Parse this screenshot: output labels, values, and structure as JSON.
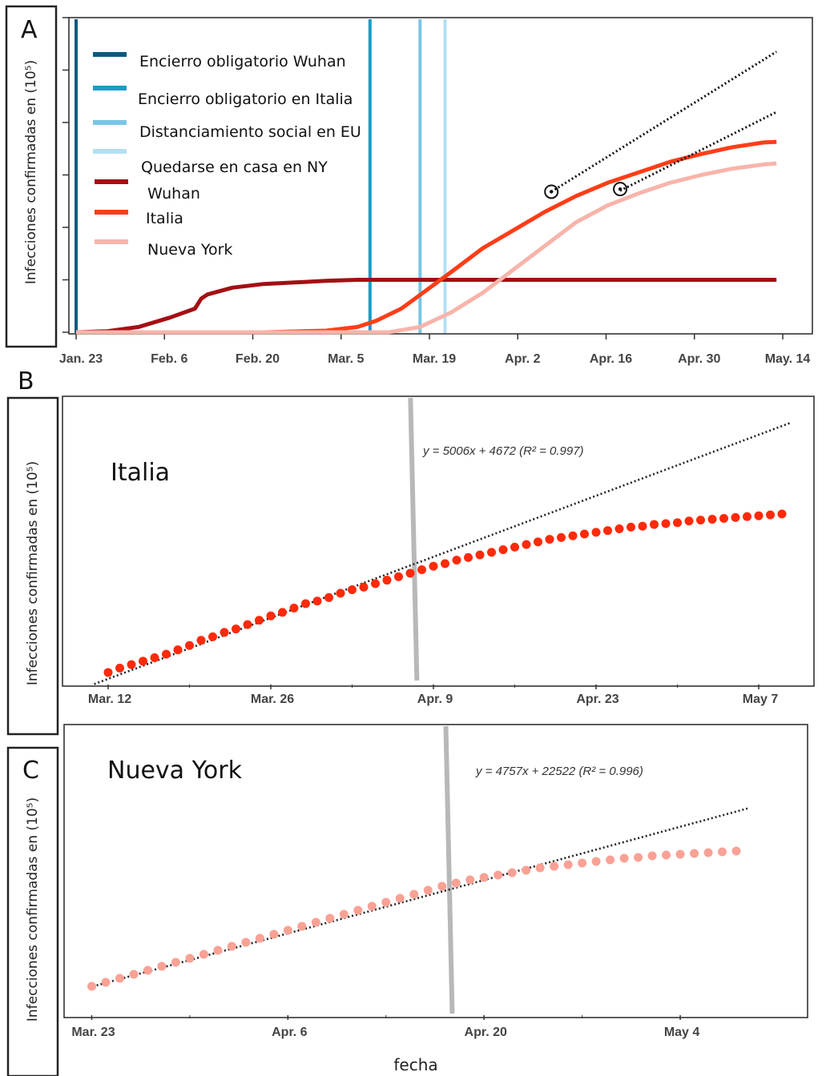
{
  "chart_data": [
    {
      "panel": "A",
      "type": "line",
      "ylabel": "Infecciones confirmadas en (10⁵)",
      "x_ticks": [
        "Jan. 23",
        "Feb. 6",
        "Feb. 20",
        "Mar. 5",
        "Mar. 19",
        "Apr. 2",
        "Apr. 16",
        "Apr. 30",
        "May. 14"
      ],
      "x_range": [
        0,
        113
      ],
      "y_range": [
        0,
        6
      ],
      "y_ticks": [
        0,
        1,
        2,
        3,
        4,
        5,
        6
      ],
      "vlines": [
        {
          "name": "Encierro obligatorio Wuhan",
          "x": 0,
          "color": "#0b5a80"
        },
        {
          "name": "Encierro obligatorio en Italia",
          "x": 47,
          "color": "#1b9cc4"
        },
        {
          "name": "Distanciamiento social en EU",
          "x": 55,
          "color": "#78c6e6"
        },
        {
          "name": "Quedarse en casa en NY",
          "x": 59,
          "color": "#b4dff2"
        }
      ],
      "series": [
        {
          "name": "Wuhan",
          "color": "#a30f14",
          "x": [
            0,
            5,
            10,
            15,
            19,
            20,
            21,
            25,
            30,
            35,
            40,
            45,
            50,
            60,
            80,
            100,
            112
          ],
          "y": [
            0,
            0.02,
            0.1,
            0.28,
            0.45,
            0.64,
            0.72,
            0.85,
            0.92,
            0.95,
            0.98,
            1.0,
            1.0,
            1.0,
            1.0,
            1.0,
            1.0
          ]
        },
        {
          "name": "Italia",
          "color": "#ff3d17",
          "x": [
            0,
            30,
            40,
            45,
            48,
            52,
            56,
            60,
            65,
            70,
            75,
            80,
            85,
            90,
            95,
            100,
            105,
            110,
            112
          ],
          "y": [
            0,
            0,
            0.03,
            0.1,
            0.22,
            0.45,
            0.8,
            1.15,
            1.6,
            1.95,
            2.3,
            2.6,
            2.85,
            3.05,
            3.25,
            3.4,
            3.53,
            3.62,
            3.63
          ]
        },
        {
          "name": "Nueva York",
          "color": "#f8b4aa",
          "x": [
            0,
            50,
            55,
            60,
            65,
            70,
            75,
            80,
            85,
            90,
            95,
            100,
            105,
            110,
            112
          ],
          "y": [
            0,
            0,
            0.1,
            0.38,
            0.75,
            1.2,
            1.65,
            2.1,
            2.42,
            2.65,
            2.85,
            3.0,
            3.12,
            3.2,
            3.22
          ]
        }
      ],
      "fits": [
        {
          "x": [
            76,
            112
          ],
          "y": [
            2.68,
            5.35
          ]
        },
        {
          "x": [
            87,
            112
          ],
          "y": [
            2.7,
            4.2
          ]
        }
      ],
      "markers": [
        {
          "x": 76,
          "y": 2.68
        },
        {
          "x": 87,
          "y": 2.73
        }
      ]
    },
    {
      "panel": "B",
      "type": "scatter",
      "region": "Italia",
      "ylabel": "Infecciones confirmadas en (10⁵)",
      "equation": "y = 5006x + 4672 (R² = 0.997)",
      "x_ticks": [
        "Mar. 12",
        "Mar. 26",
        "Apr. 9",
        "Apr. 23",
        "May 7"
      ],
      "x_range": [
        -2,
        60
      ],
      "y_range": [
        0,
        3.2
      ],
      "vline_x": 26.3,
      "fit": {
        "slope": 0.05006,
        "intercept": 0.04672
      },
      "series": [
        {
          "name": "Italia",
          "color": "#ff2a0a",
          "x": [
            0,
            1,
            2,
            3,
            4,
            5,
            6,
            7,
            8,
            9,
            10,
            11,
            12,
            13,
            14,
            15,
            16,
            17,
            18,
            19,
            20,
            21,
            22,
            23,
            24,
            25,
            26,
            27,
            28,
            29,
            30,
            31,
            32,
            33,
            34,
            35,
            36,
            37,
            38,
            39,
            40,
            41,
            42,
            43,
            44,
            45,
            46,
            47,
            48,
            49,
            50,
            51,
            52,
            53,
            54,
            55,
            56,
            57,
            58
          ],
          "y": [
            0.12,
            0.17,
            0.21,
            0.25,
            0.29,
            0.33,
            0.38,
            0.43,
            0.49,
            0.53,
            0.58,
            0.62,
            0.67,
            0.72,
            0.77,
            0.81,
            0.86,
            0.91,
            0.94,
            0.98,
            1.03,
            1.07,
            1.1,
            1.14,
            1.18,
            1.22,
            1.26,
            1.3,
            1.34,
            1.37,
            1.41,
            1.44,
            1.47,
            1.5,
            1.53,
            1.56,
            1.59,
            1.62,
            1.65,
            1.67,
            1.69,
            1.71,
            1.73,
            1.75,
            1.77,
            1.79,
            1.8,
            1.82,
            1.83,
            1.84,
            1.86,
            1.87,
            1.88,
            1.89,
            1.9,
            1.91,
            1.92,
            1.93,
            1.94
          ]
        }
      ]
    },
    {
      "panel": "C",
      "type": "scatter",
      "region": "Nueva York",
      "ylabel": "Infecciones confirmadas en (10⁵)",
      "xlabel": "fecha",
      "equation": "y = 4757x + 22522 (R² = 0.996)",
      "x_ticks": [
        "Mar. 23",
        "Apr. 6",
        "Apr. 20",
        "May 4"
      ],
      "x_range": [
        -1,
        48
      ],
      "y_range": [
        0,
        3.3
      ],
      "vline_x": 25.5,
      "fit": {
        "slope": 0.04757,
        "intercept": 0.22522
      },
      "series": [
        {
          "name": "Nueva York",
          "color": "#f9a195",
          "x": [
            0,
            1,
            2,
            3,
            4,
            5,
            6,
            7,
            8,
            9,
            10,
            11,
            12,
            13,
            14,
            15,
            16,
            17,
            18,
            19,
            20,
            21,
            22,
            23,
            24,
            25,
            26,
            27,
            28,
            29,
            30,
            31,
            32,
            33,
            34,
            35,
            36,
            37,
            38,
            39,
            40,
            41,
            42,
            43,
            44,
            45,
            46
          ],
          "y": [
            0.23,
            0.28,
            0.33,
            0.38,
            0.43,
            0.48,
            0.53,
            0.58,
            0.63,
            0.68,
            0.73,
            0.78,
            0.83,
            0.88,
            0.93,
            0.98,
            1.03,
            1.08,
            1.13,
            1.18,
            1.23,
            1.28,
            1.33,
            1.38,
            1.43,
            1.48,
            1.52,
            1.56,
            1.59,
            1.62,
            1.65,
            1.68,
            1.71,
            1.73,
            1.75,
            1.77,
            1.79,
            1.81,
            1.83,
            1.84,
            1.86,
            1.87,
            1.88,
            1.89,
            1.9,
            1.91,
            1.92
          ]
        }
      ]
    }
  ]
}
